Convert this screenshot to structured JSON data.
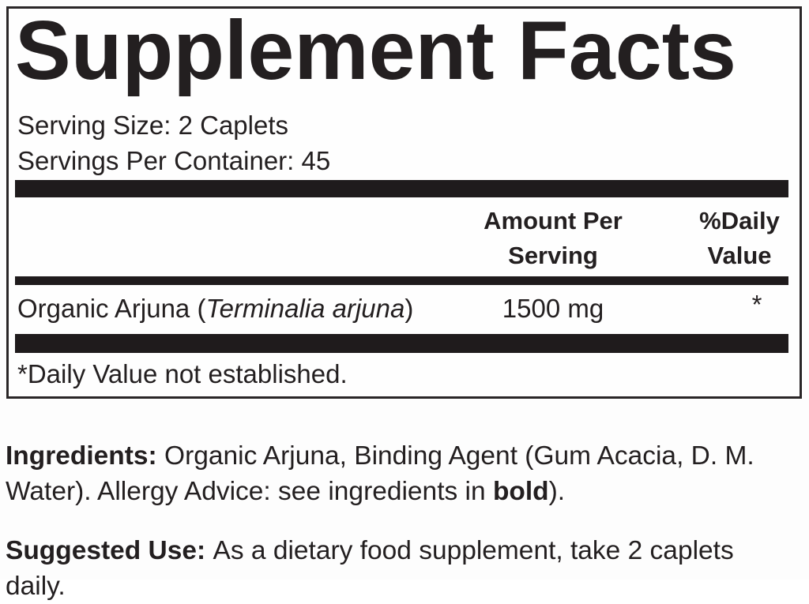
{
  "colors": {
    "ink": "#231f20",
    "bar": "#1f1b1c",
    "border": "#2a2627",
    "background": "#fdfdfd"
  },
  "panel": {
    "title": "Supplement Facts",
    "serving_size": "Serving Size: 2 Caplets",
    "servings_per_container": "Servings Per Container: 45",
    "columns": {
      "amount_header": "Amount Per\nServing",
      "daily_value_header": "%Daily\nValue"
    },
    "rows": [
      {
        "name_rich": [
          [
            {
              "t": "Organic Arjuna (",
              "b": false,
              "i": false
            },
            {
              "t": "Terminalia arjuna",
              "b": false,
              "i": true
            },
            {
              "t": ")",
              "b": false,
              "i": false
            }
          ]
        ],
        "amount": "1500 mg",
        "daily_value": "*"
      }
    ],
    "footnote": "*Daily Value not established."
  },
  "paragraphs": {
    "ingredients": {
      "lines": [
        [
          {
            "t": "Ingredients: ",
            "b": true,
            "i": false
          },
          {
            "t": "Organic Arjuna, Binding Agent (Gum Acacia, D. M.",
            "b": false,
            "i": false
          }
        ],
        [
          {
            "t": "Water). Allergy Advice: see ingredients in ",
            "b": false,
            "i": false
          },
          {
            "t": "bold",
            "b": true,
            "i": false
          },
          {
            "t": ").",
            "b": false,
            "i": false
          }
        ]
      ]
    },
    "suggested_use": {
      "lines": [
        [
          {
            "t": "Suggested Use: ",
            "b": true,
            "i": false
          },
          {
            "t": "As a dietary food supplement, take 2 caplets",
            "b": false,
            "i": false
          }
        ],
        [
          {
            "t": "daily.",
            "b": false,
            "i": false
          }
        ]
      ]
    }
  }
}
